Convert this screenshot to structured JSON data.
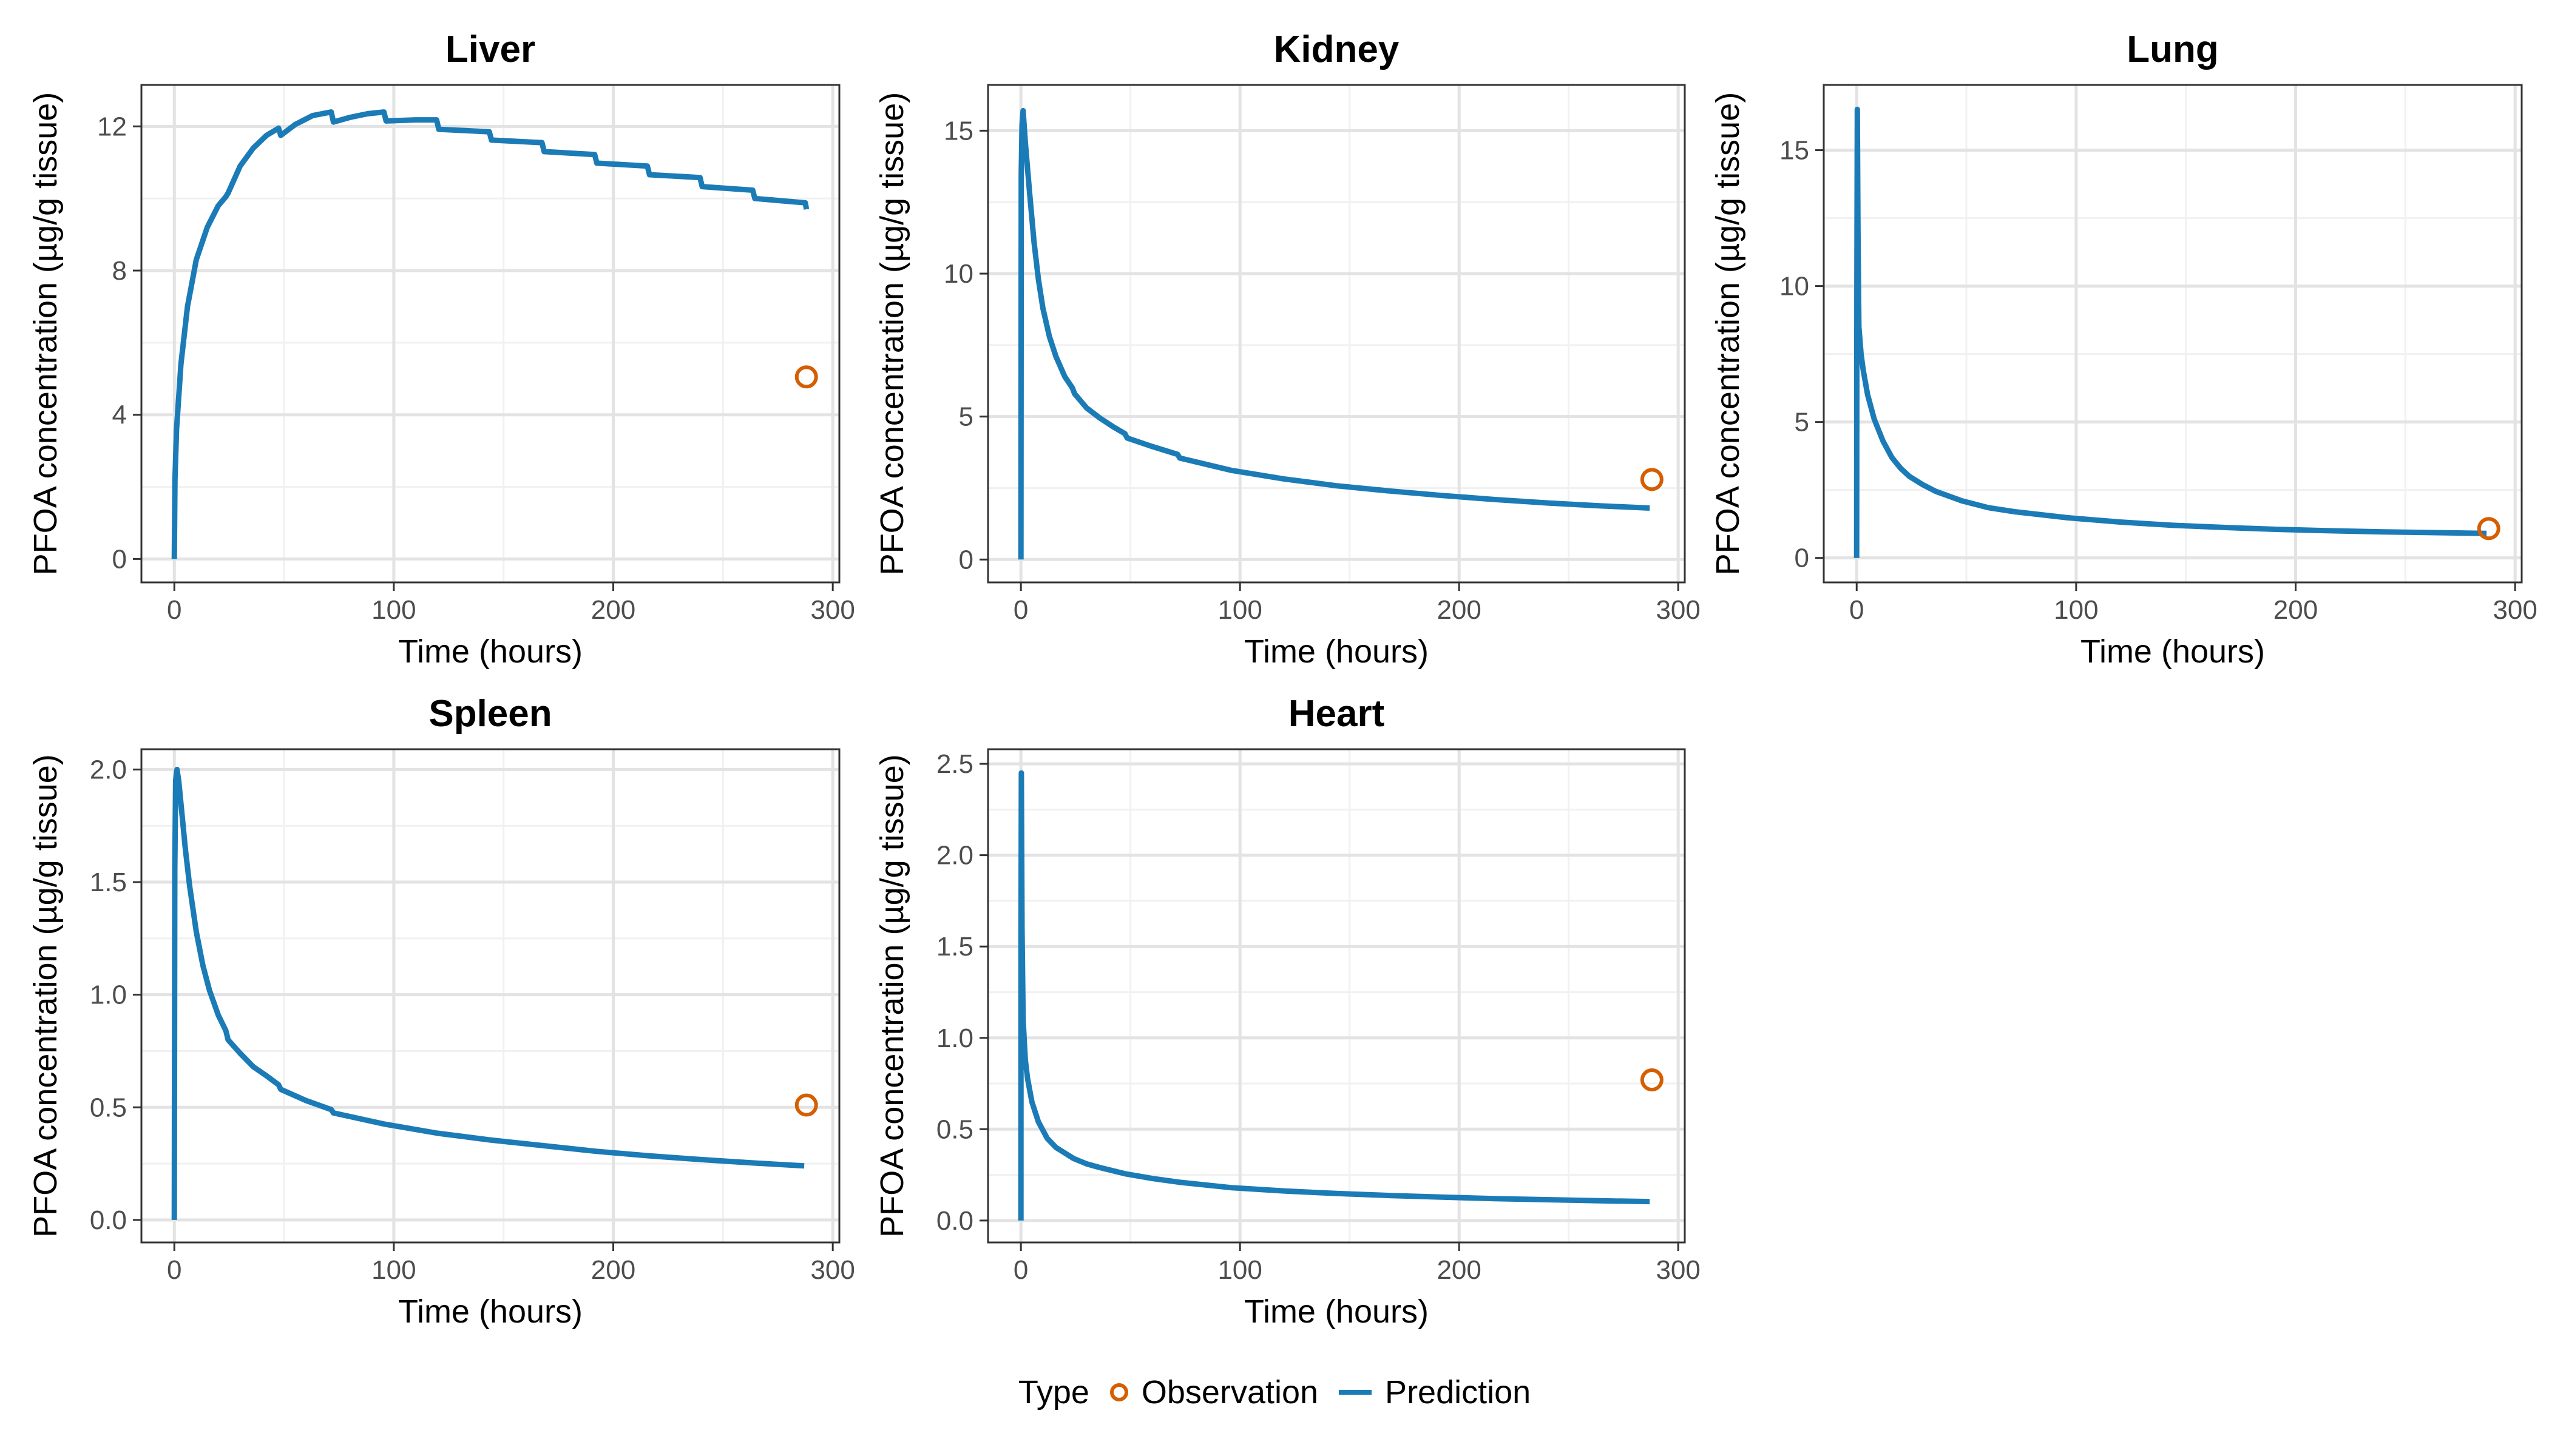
{
  "legend": {
    "title": "Type",
    "items": [
      {
        "label": "Observation",
        "color": "#D55E00",
        "shape": "open-circle"
      },
      {
        "label": "Prediction",
        "color": "#1B7BB6",
        "shape": "line"
      }
    ]
  },
  "chart_data": [
    {
      "type": "line",
      "title": "Liver",
      "xlabel": "Time (hours)",
      "ylabel": "PFOA concentration (µg/g tissue)",
      "xlim": [
        -15,
        303
      ],
      "ylim": [
        -0.65,
        13.15
      ],
      "xticks": [
        0,
        100,
        200,
        300
      ],
      "yticks": [
        0,
        4,
        8,
        12
      ],
      "ytick_labels": [
        "0",
        "4",
        "8",
        "12"
      ],
      "grid": true,
      "series": [
        {
          "name": "Prediction",
          "kind": "line",
          "x": [
            0,
            0.3,
            1,
            3,
            6,
            10,
            15,
            20,
            23.5,
            24.5,
            30,
            36,
            42,
            47.5,
            48.5,
            55,
            63,
            71.5,
            72.5,
            80,
            88,
            95.5,
            96.5,
            110,
            119.5,
            120.5,
            143.5,
            144.5,
            167.5,
            168.5,
            191.5,
            192.5,
            215.5,
            216.5,
            239.5,
            240.5,
            263.5,
            264.5,
            287.5,
            288
          ],
          "y": [
            0,
            2.2,
            3.6,
            5.4,
            7.0,
            8.3,
            9.2,
            9.8,
            10.05,
            10.15,
            10.9,
            11.4,
            11.75,
            11.95,
            11.75,
            12.05,
            12.3,
            12.4,
            12.12,
            12.25,
            12.35,
            12.4,
            12.15,
            12.18,
            12.18,
            11.92,
            11.85,
            11.62,
            11.55,
            11.3,
            11.22,
            10.98,
            10.9,
            10.66,
            10.58,
            10.33,
            10.23,
            10.0,
            9.88,
            9.7
          ]
        },
        {
          "name": "Observation",
          "kind": "point",
          "x": [
            288
          ],
          "y": [
            5.05
          ]
        }
      ]
    },
    {
      "type": "line",
      "title": "Kidney",
      "xlabel": "Time (hours)",
      "ylabel": "PFOA concentration (µg/g tissue)",
      "xlim": [
        -15,
        303
      ],
      "ylim": [
        -0.8,
        16.6
      ],
      "xticks": [
        0,
        100,
        200,
        300
      ],
      "yticks": [
        0,
        5,
        10,
        15
      ],
      "ytick_labels": [
        "0",
        "5",
        "10",
        "15"
      ],
      "grid": true,
      "series": [
        {
          "name": "Prediction",
          "kind": "line",
          "x": [
            0,
            0.15,
            0.5,
            1,
            2,
            4,
            6,
            8,
            10,
            13,
            16,
            20,
            23.5,
            24.5,
            30,
            36,
            42,
            47.5,
            48.5,
            60,
            71.5,
            72.5,
            96,
            120,
            144,
            168,
            192,
            216,
            240,
            264,
            287
          ],
          "y": [
            0,
            13.5,
            15.2,
            15.7,
            14.6,
            12.8,
            11.1,
            9.8,
            8.8,
            7.8,
            7.1,
            6.4,
            6.0,
            5.8,
            5.3,
            4.95,
            4.65,
            4.4,
            4.25,
            3.95,
            3.68,
            3.55,
            3.12,
            2.82,
            2.58,
            2.4,
            2.24,
            2.1,
            1.98,
            1.88,
            1.8
          ]
        },
        {
          "name": "Observation",
          "kind": "point",
          "x": [
            288
          ],
          "y": [
            2.8
          ]
        }
      ]
    },
    {
      "type": "line",
      "title": "Lung",
      "xlabel": "Time (hours)",
      "ylabel": "PFOA concentration (µg/g tissue)",
      "xlim": [
        -15,
        303
      ],
      "ylim": [
        -0.9,
        17.4
      ],
      "xticks": [
        0,
        100,
        200,
        300
      ],
      "yticks": [
        0,
        5,
        10,
        15
      ],
      "ytick_labels": [
        "0",
        "5",
        "10",
        "15"
      ],
      "grid": true,
      "series": [
        {
          "name": "Prediction",
          "kind": "line",
          "x": [
            0,
            0.1,
            0.3,
            0.6,
            1,
            2,
            3,
            5,
            8,
            12,
            16,
            20,
            24,
            30,
            36,
            48,
            60,
            72,
            96,
            120,
            144,
            168,
            192,
            216,
            240,
            264,
            287
          ],
          "y": [
            0,
            10.0,
            16.5,
            12.0,
            8.5,
            7.5,
            6.9,
            6.0,
            5.1,
            4.3,
            3.7,
            3.3,
            3.0,
            2.7,
            2.45,
            2.1,
            1.85,
            1.7,
            1.48,
            1.32,
            1.2,
            1.12,
            1.05,
            1.0,
            0.96,
            0.93,
            0.9
          ]
        },
        {
          "name": "Observation",
          "kind": "point",
          "x": [
            288
          ],
          "y": [
            1.08
          ]
        }
      ]
    },
    {
      "type": "line",
      "title": "Spleen",
      "xlabel": "Time (hours)",
      "ylabel": "PFOA concentration (µg/g tissue)",
      "xlim": [
        -15,
        303
      ],
      "ylim": [
        -0.1,
        2.09
      ],
      "xticks": [
        0,
        100,
        200,
        300
      ],
      "yticks": [
        0,
        0.5,
        1.0,
        1.5,
        2.0
      ],
      "ytick_labels": [
        "0.0",
        "0.5",
        "1.0",
        "1.5",
        "2.0"
      ],
      "grid": true,
      "series": [
        {
          "name": "Prediction",
          "kind": "line",
          "x": [
            0,
            0.2,
            0.6,
            1.2,
            2,
            3,
            5,
            7,
            10,
            13,
            16,
            20,
            23.5,
            24.5,
            30,
            36,
            42,
            47.5,
            48.5,
            60,
            71.5,
            72.5,
            96,
            120,
            144,
            168,
            192,
            216,
            240,
            264,
            287
          ],
          "y": [
            0,
            1.55,
            1.95,
            2.0,
            1.95,
            1.85,
            1.65,
            1.48,
            1.28,
            1.13,
            1.02,
            0.91,
            0.84,
            0.8,
            0.74,
            0.68,
            0.64,
            0.6,
            0.58,
            0.53,
            0.49,
            0.475,
            0.425,
            0.385,
            0.355,
            0.33,
            0.305,
            0.285,
            0.268,
            0.253,
            0.24
          ]
        },
        {
          "name": "Observation",
          "kind": "point",
          "x": [
            288
          ],
          "y": [
            0.51
          ]
        }
      ]
    },
    {
      "type": "line",
      "title": "Heart",
      "xlabel": "Time (hours)",
      "ylabel": "PFOA concentration (µg/g tissue)",
      "xlim": [
        -15,
        303
      ],
      "ylim": [
        -0.12,
        2.58
      ],
      "xticks": [
        0,
        100,
        200,
        300
      ],
      "yticks": [
        0,
        0.5,
        1.0,
        1.5,
        2.0,
        2.5
      ],
      "ytick_labels": [
        "0.0",
        "0.5",
        "1.0",
        "1.5",
        "2.0",
        "2.5"
      ],
      "grid": true,
      "series": [
        {
          "name": "Prediction",
          "kind": "line",
          "x": [
            0,
            0.05,
            0.2,
            0.5,
            1,
            2,
            3,
            5,
            8,
            12,
            16,
            20,
            24,
            30,
            36,
            48,
            60,
            72,
            96,
            120,
            144,
            168,
            192,
            216,
            240,
            264,
            287
          ],
          "y": [
            0,
            1.5,
            2.45,
            1.6,
            1.1,
            0.88,
            0.78,
            0.65,
            0.54,
            0.45,
            0.4,
            0.37,
            0.34,
            0.31,
            0.29,
            0.255,
            0.23,
            0.21,
            0.18,
            0.162,
            0.148,
            0.137,
            0.128,
            0.12,
            0.114,
            0.108,
            0.104
          ]
        },
        {
          "name": "Observation",
          "kind": "point",
          "x": [
            288
          ],
          "y": [
            0.77
          ]
        }
      ]
    }
  ]
}
